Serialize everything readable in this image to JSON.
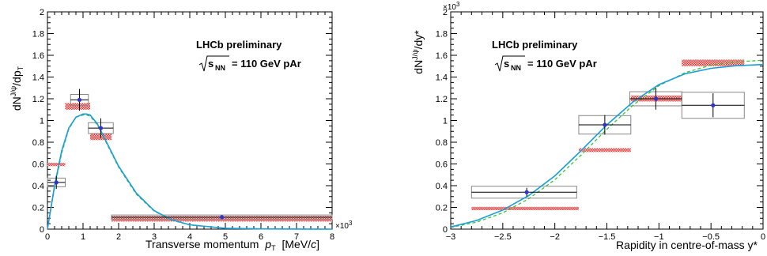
{
  "chart_data": [
    {
      "type": "scatter",
      "title": "LHCb preliminary",
      "subtitle": "= 110 GeV pAr",
      "xlabel": "Transverse momentum",
      "ylabel": "dN",
      "x_exponent": "×10",
      "x_exponent_power": "3",
      "xlim": [
        0,
        8000
      ],
      "ylim": [
        0,
        2
      ],
      "xticks": [
        0,
        1000,
        2000,
        3000,
        4000,
        5000,
        6000,
        7000,
        8000
      ],
      "xtick_labels": [
        "0",
        "1",
        "2",
        "3",
        "4",
        "5",
        "6",
        "7",
        "8"
      ],
      "yticks": [
        0,
        0.2,
        0.4,
        0.6,
        0.8,
        1.0,
        1.2,
        1.4,
        1.6,
        1.8,
        2.0
      ],
      "ytick_labels": [
        "0",
        "0.2",
        "0.4",
        "0.6",
        "0.8",
        "1",
        "1.2",
        "1.4",
        "1.6",
        "1.8",
        "2"
      ],
      "data": {
        "x": [
          250,
          900,
          1500,
          4900
        ],
        "y": [
          0.43,
          1.19,
          0.93,
          0.11
        ],
        "xerr_low": [
          250,
          250,
          350,
          3100
        ],
        "xerr_high": [
          250,
          250,
          350,
          3100
        ],
        "yerr": [
          0.06,
          0.1,
          0.09,
          0.01
        ],
        "syst_half_height": [
          0.04,
          0.05,
          0.05,
          0.02
        ]
      },
      "model_bands": [
        {
          "x0": 0,
          "x1": 500,
          "y_low": 0.58,
          "y_high": 0.61
        },
        {
          "x0": 500,
          "x1": 1200,
          "y_low": 1.1,
          "y_high": 1.16
        },
        {
          "x0": 1200,
          "x1": 1800,
          "y_low": 0.82,
          "y_high": 0.88
        },
        {
          "x0": 1800,
          "x1": 8000,
          "y_low": 0.07,
          "y_high": 0.12
        }
      ],
      "fit_solid": {
        "x": [
          0,
          200,
          400,
          600,
          800,
          1000,
          1100,
          1200,
          1400,
          1600,
          1800,
          2000,
          2500,
          3000,
          3500,
          4000,
          5000,
          6000,
          7000,
          8000
        ],
        "y": [
          0.0,
          0.4,
          0.72,
          0.93,
          1.03,
          1.06,
          1.06,
          1.05,
          0.97,
          0.84,
          0.71,
          0.58,
          0.33,
          0.17,
          0.085,
          0.04,
          0.008,
          0.002,
          0.0005,
          0.0001
        ]
      },
      "fit_dashed": {
        "x": [
          0,
          200,
          400,
          600,
          800,
          1000,
          1100,
          1200,
          1400,
          1600,
          1800,
          2000,
          2500,
          3000,
          3500,
          4000,
          5000,
          6000,
          7000,
          8000
        ],
        "y": [
          0.0,
          0.38,
          0.7,
          0.92,
          1.03,
          1.05,
          1.05,
          1.04,
          0.96,
          0.83,
          0.7,
          0.57,
          0.32,
          0.165,
          0.082,
          0.038,
          0.008,
          0.002,
          0.0005,
          0.0001
        ]
      }
    },
    {
      "type": "scatter",
      "title": "LHCb preliminary",
      "subtitle": "= 110 GeV pAr",
      "xlabel": "Rapidity in centre-of-mass y*",
      "ylabel": "dN",
      "y_exponent": "×10",
      "y_exponent_power": "3",
      "xlim": [
        -3,
        0
      ],
      "ylim": [
        0,
        2000
      ],
      "xticks": [
        -3,
        -2.5,
        -2,
        -1.5,
        -1,
        -0.5,
        0
      ],
      "xtick_labels": [
        "−3",
        "−2.5",
        "−2",
        "−1.5",
        "−1",
        "−0.5",
        "0"
      ],
      "yticks": [
        0,
        200,
        400,
        600,
        800,
        1000,
        1200,
        1400,
        1600,
        1800,
        2000
      ],
      "ytick_labels": [
        "0",
        "0.2",
        "0.4",
        "0.6",
        "0.8",
        "1",
        "1.2",
        "1.4",
        "1.6",
        "1.8",
        "2"
      ],
      "data": {
        "x": [
          -2.27,
          -1.52,
          -1.03,
          -0.48
        ],
        "y": [
          340,
          960,
          1200,
          1140
        ],
        "xerr_low": [
          0.53,
          0.25,
          0.25,
          0.3
        ],
        "xerr_high": [
          0.48,
          0.25,
          0.25,
          0.3
        ],
        "yerr": [
          40,
          90,
          100,
          110
        ],
        "syst_half_height": [
          55,
          85,
          65,
          120
        ]
      },
      "model_bands": [
        {
          "x0": -2.8,
          "x1": -1.77,
          "y_low": 175,
          "y_high": 205
        },
        {
          "x0": -1.77,
          "x1": -1.27,
          "y_low": 710,
          "y_high": 745
        },
        {
          "x0": -1.27,
          "x1": -0.78,
          "y_low": 1175,
          "y_high": 1230
        },
        {
          "x0": -0.78,
          "x1": -0.18,
          "y_low": 1500,
          "y_high": 1560
        }
      ],
      "fit_solid": {
        "x": [
          -3,
          -2.75,
          -2.5,
          -2.25,
          -2.0,
          -1.75,
          -1.5,
          -1.25,
          -1.0,
          -0.75,
          -0.5,
          -0.25,
          0
        ],
        "y": [
          20,
          80,
          175,
          310,
          490,
          720,
          960,
          1170,
          1330,
          1430,
          1480,
          1505,
          1515
        ]
      },
      "fit_dashed": {
        "x": [
          -3,
          -2.75,
          -2.5,
          -2.25,
          -2.0,
          -1.75,
          -1.5,
          -1.25,
          -1.0,
          -0.75,
          -0.5,
          -0.25,
          0
        ],
        "y": [
          15,
          65,
          150,
          280,
          455,
          680,
          920,
          1140,
          1320,
          1440,
          1510,
          1540,
          1555
        ]
      }
    }
  ],
  "colors": {
    "fit_solid": "#1a9ed9",
    "fit_dashed": "#39c439",
    "marker": "#3333cc",
    "model_band": "#ee3333",
    "syst_box": "#888888"
  },
  "chart1_labels": {
    "ylabel_sup": "J/ψ",
    "ylabel_rest": "/dp",
    "ylabel_sub": "T",
    "xlabel_p": "p",
    "xlabel_sub": "T",
    "xlabel_unit_open": "[MeV/",
    "xlabel_unit_c": "c",
    "xlabel_unit_close": "]",
    "subtitle_s": "s",
    "subtitle_sub": "NN"
  },
  "chart2_labels": {
    "ylabel_sup": "J/ψ",
    "ylabel_rest": "/dy*",
    "subtitle_s": "s",
    "subtitle_sub": "NN"
  }
}
